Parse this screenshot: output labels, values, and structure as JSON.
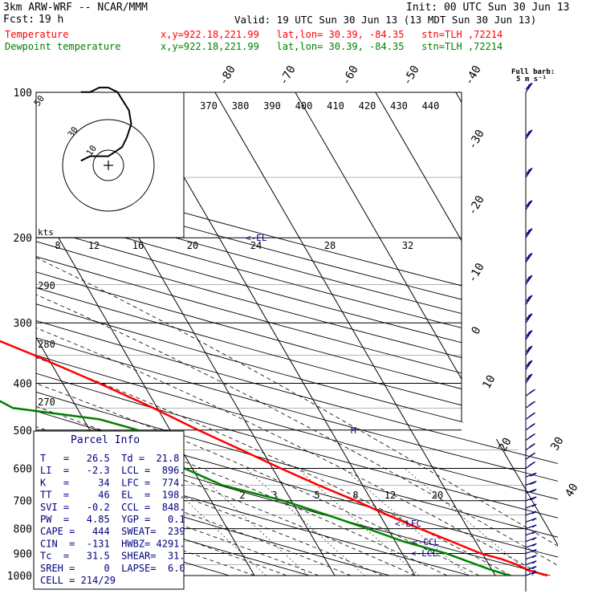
{
  "header": {
    "model": "3km ARW-WRF -- NCAR/MMM",
    "init": "Init: 00 UTC Sun 30 Jun 13",
    "fcst_label": "Fcst:",
    "fcst_value": "19 h",
    "valid": "Valid: 19 UTC Sun 30 Jun 13 (13 MDT Sun 30 Jun 13)",
    "temp_label": "Temperature",
    "dew_label": "Dewpoint temperature",
    "loc_temp": "x,y=922.18,221.99   lat,lon= 30.39, -84.35   stn=TLH ,72214",
    "loc_dew": "x,y=922.18,221.99   lat,lon= 30.39, -84.35   stn=TLH ,72214",
    "barb_note_1": "Full barb:",
    "barb_note_2": "5 m s⁻¹"
  },
  "colors": {
    "temperature": "#ff0000",
    "dewpoint": "#008000",
    "text": "#000000",
    "info": "#00007f",
    "grid": "#000000"
  },
  "parcel_info": {
    "title": "Parcel Info",
    "rows": [
      "T   =   26.5  Td =  21.8",
      "LI  =   -2.3  LCL =  896.",
      "K   =     34  LFC =  774.",
      "TT  =     46  EL  =  198.",
      "SVI =   -0.2  CCL =  848.",
      "PW  =   4.85  YGP =   0.1",
      "CAPE =   444  SWEAT=  239",
      "CIN  =  -131  HWBZ= 4291.",
      "Tc  =   31.5  SHEAR=  31.",
      "SREH =     0  LAPSE=  6.0",
      "CELL = 214/29"
    ]
  },
  "hodograph": {
    "unit_label": "kts",
    "ring_labels": [
      "10",
      "30",
      "50"
    ]
  },
  "annotations": {
    "el": "<-EL",
    "lfc": "<-LFC",
    "ccl": "<-CCL",
    "lcl": "<-LCL",
    "m": "M"
  },
  "chart_data": {
    "type": "line",
    "title": "",
    "y_axis": "pressure (hPa)",
    "pressure_levels": [
      100,
      200,
      300,
      400,
      500,
      600,
      700,
      800,
      900,
      1000
    ],
    "isotherm_labels": [
      "-80",
      "-70",
      "-60",
      "-50",
      "-40",
      "-30",
      "-20",
      "-10",
      "0",
      "10",
      "20",
      "30",
      "40"
    ],
    "theta_labels": [
      "370",
      "380",
      "390",
      "400",
      "410",
      "420",
      "430",
      "440"
    ],
    "theta_labels_lower": [
      "290",
      "280",
      "270"
    ],
    "mixing_ratio_labels": [
      "2",
      "3",
      "5",
      "8",
      "12",
      "20"
    ],
    "theta_e_labels": [
      "8",
      "12",
      "16",
      "20",
      "24",
      "28",
      "32"
    ],
    "series": [
      {
        "name": "Temperature",
        "color": "#ff0000",
        "points": [
          [
            1000,
            26.5
          ],
          [
            975,
            24.5
          ],
          [
            950,
            23.5
          ],
          [
            925,
            22.0
          ],
          [
            900,
            19.8
          ],
          [
            850,
            17.0
          ],
          [
            800,
            14.0
          ],
          [
            750,
            11.0
          ],
          [
            700,
            8.0
          ],
          [
            650,
            4.5
          ],
          [
            600,
            1.0
          ],
          [
            550,
            -2.5
          ],
          [
            500,
            -6.5
          ],
          [
            450,
            -10.5
          ],
          [
            400,
            -15.5
          ],
          [
            350,
            -21.5
          ],
          [
            300,
            -29.0
          ],
          [
            250,
            -38.0
          ],
          [
            200,
            -50.0
          ],
          [
            175,
            -57.0
          ],
          [
            150,
            -65.0
          ],
          [
            130,
            -69.0
          ],
          [
            115,
            -68.0
          ],
          [
            100,
            -67.0
          ]
        ]
      },
      {
        "name": "Dewpoint temperature",
        "color": "#008000",
        "points": [
          [
            1000,
            21.8
          ],
          [
            975,
            20.0
          ],
          [
            950,
            18.5
          ],
          [
            925,
            17.0
          ],
          [
            900,
            15.5
          ],
          [
            850,
            11.0
          ],
          [
            800,
            7.5
          ],
          [
            750,
            3.5
          ],
          [
            700,
            -1.0
          ],
          [
            650,
            -7.5
          ],
          [
            600,
            -11.0
          ],
          [
            550,
            -12.5
          ],
          [
            500,
            -14.0
          ],
          [
            475,
            -18.0
          ],
          [
            450,
            -28.0
          ],
          [
            400,
            -32.0
          ],
          [
            350,
            -38.0
          ],
          [
            300,
            -45.0
          ],
          [
            250,
            -56.0
          ],
          [
            200,
            -68.0
          ],
          [
            175,
            -73.0
          ],
          [
            150,
            -82.0
          ],
          [
            130,
            -84.0
          ],
          [
            115,
            -81.0
          ],
          [
            100,
            -77.0
          ]
        ]
      }
    ],
    "hodograph_points": [
      [
        -6,
        -1
      ],
      [
        -4,
        -2
      ],
      [
        -2,
        -2
      ],
      [
        0,
        -2
      ],
      [
        1.5,
        -3
      ],
      [
        3,
        -4
      ],
      [
        4,
        -6
      ],
      [
        5,
        -9
      ],
      [
        4.5,
        -12
      ],
      [
        2,
        -16
      ],
      [
        0,
        -17
      ],
      [
        -2,
        -17
      ],
      [
        -4,
        -16
      ],
      [
        -6,
        -16
      ]
    ]
  }
}
